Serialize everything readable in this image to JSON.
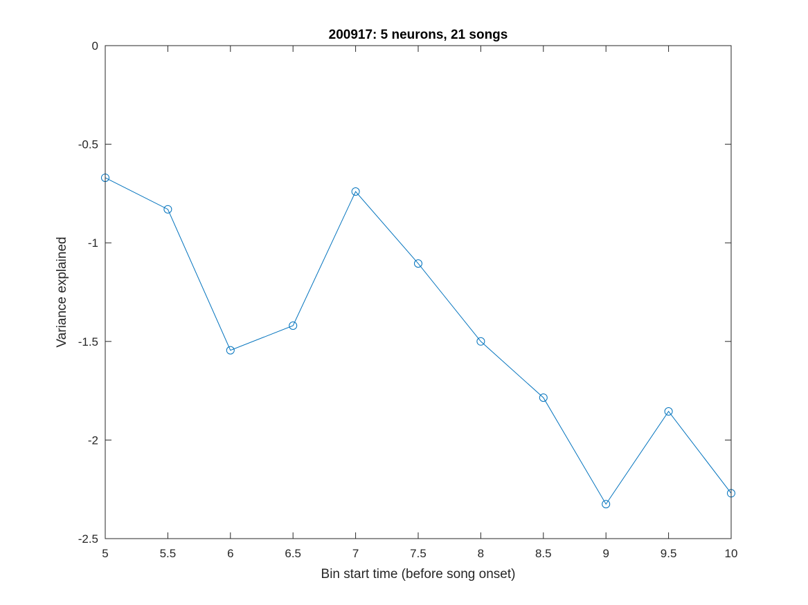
{
  "chart_data": {
    "type": "line",
    "title": "200917: 5 neurons, 21 songs",
    "xlabel": "Bin start time (before song onset)",
    "ylabel": "Variance explained",
    "xlim": [
      5,
      10
    ],
    "ylim": [
      -2.5,
      0
    ],
    "xticks": [
      5,
      5.5,
      6,
      6.5,
      7,
      7.5,
      8,
      8.5,
      9,
      9.5,
      10
    ],
    "xtick_labels": [
      "5",
      "5.5",
      "6",
      "6.5",
      "7",
      "7.5",
      "8",
      "8.5",
      "9",
      "9.5",
      "10"
    ],
    "yticks": [
      0,
      -0.5,
      -1,
      -1.5,
      -2,
      -2.5
    ],
    "ytick_labels": [
      "0",
      "-0.5",
      "-1",
      "-1.5",
      "-2",
      "-2.5"
    ],
    "grid": false,
    "legend": "none",
    "series": [
      {
        "x": [
          5,
          5.5,
          6,
          6.5,
          7,
          7.5,
          8,
          8.5,
          9,
          9.5,
          10
        ],
        "y": [
          -0.67,
          -0.83,
          -1.545,
          -1.42,
          -0.74,
          -1.105,
          -1.5,
          -1.785,
          -2.325,
          -1.855,
          -2.27
        ],
        "color": "#0072BD",
        "marker": "circle"
      }
    ],
    "reference_line": {
      "y": 0,
      "color": "#D62728",
      "style": "dashed"
    }
  }
}
